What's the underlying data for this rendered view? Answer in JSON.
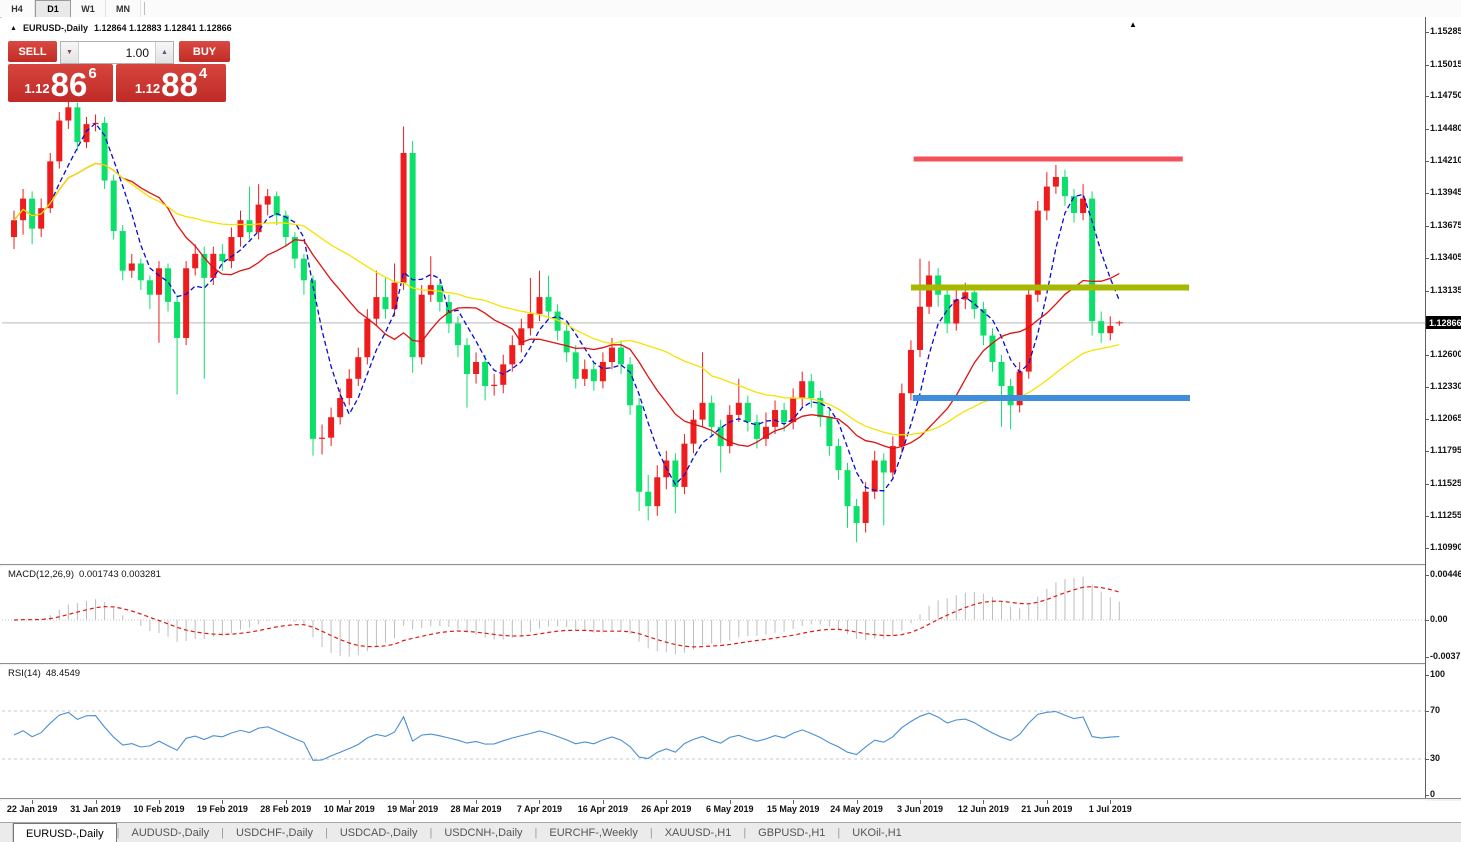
{
  "toolbar": {
    "timeframes": [
      {
        "label": "H4",
        "active": false
      },
      {
        "label": "D1",
        "active": true
      },
      {
        "label": "W1",
        "active": false
      },
      {
        "label": "MN",
        "active": false
      }
    ]
  },
  "chart": {
    "marker": "▲",
    "symbol_label": "EURUSD-,Daily",
    "ohlc_text": "1.12864 1.12883 1.12841 1.12866",
    "shift_marker": "▲",
    "trade_panel": {
      "sell_label": "SELL",
      "buy_label": "BUY",
      "volume": "1.00",
      "spin_down": "▼",
      "spin_up": "▲",
      "sell_price": {
        "small": "1.12",
        "big": "86",
        "sup": "6"
      },
      "buy_price": {
        "small": "1.12",
        "big": "88",
        "sup": "4"
      },
      "button_color": "#c9302b"
    }
  },
  "chart_data": {
    "type": "candlestick",
    "symbol": "EURUSD-",
    "timeframe": "Daily",
    "title": "EURUSD-,Daily",
    "up_color": "#ee1c1c",
    "down_color": "#0ce06a",
    "ylim": [
      1.109,
      1.15395
    ],
    "current_price": 1.12866,
    "current_price_text": "1.12866",
    "current_price_line_color": "#b9b9b9",
    "y_ticks": [
      "1.15285",
      "1.15015",
      "1.14750",
      "1.14480",
      "1.14210",
      "1.13945",
      "1.13675",
      "1.13405",
      "1.13135",
      "1.12600",
      "1.12330",
      "1.12065",
      "1.11795",
      "1.11525",
      "1.11255",
      "1.10990"
    ],
    "x_labels": [
      "22 Jan 2019",
      "31 Jan 2019",
      "10 Feb 2019",
      "19 Feb 2019",
      "28 Feb 2019",
      "10 Mar 2019",
      "19 Mar 2019",
      "28 Mar 2019",
      "7 Apr 2019",
      "16 Apr 2019",
      "26 Apr 2019",
      "6 May 2019",
      "15 May 2019",
      "24 May 2019",
      "3 Jun 2019",
      "12 Jun 2019",
      "21 Jun 2019",
      "1 Jul 2019"
    ],
    "x_label_indices": [
      2,
      9,
      16,
      23,
      30,
      37,
      44,
      51,
      58,
      65,
      72,
      79,
      86,
      93,
      100,
      107,
      114,
      121
    ],
    "moving_averages": [
      {
        "period": 5,
        "color": "#0a0ad2",
        "dash": "5,3"
      },
      {
        "period": 13,
        "color": "#dd1111",
        "dash": ""
      },
      {
        "period": 34,
        "color": "#f5e300",
        "dash": ""
      }
    ],
    "objects": [
      {
        "name": "resistance-line",
        "price": 1.1423,
        "i1": 99.3,
        "i2": 129.0,
        "color": "#f4515a",
        "width": 5
      },
      {
        "name": "mid-support-line",
        "price": 1.1316,
        "i1": 99.0,
        "i2": 129.7,
        "color": "#a6b800",
        "width": 6
      },
      {
        "name": "lower-support-line",
        "price": 1.1224,
        "i1": 99.2,
        "i2": 129.8,
        "color": "#3f8edc",
        "width": 6
      }
    ],
    "candles": [
      [
        1.1358,
        1.138,
        1.1348,
        1.1372
      ],
      [
        1.1372,
        1.1398,
        1.136,
        1.139
      ],
      [
        1.139,
        1.1396,
        1.1352,
        1.1365
      ],
      [
        1.1365,
        1.139,
        1.1358,
        1.1382
      ],
      [
        1.1382,
        1.1428,
        1.1378,
        1.1421
      ],
      [
        1.1421,
        1.1462,
        1.1415,
        1.1455
      ],
      [
        1.1455,
        1.1472,
        1.1448,
        1.1466
      ],
      [
        1.1466,
        1.147,
        1.143,
        1.1437
      ],
      [
        1.1437,
        1.1458,
        1.1432,
        1.1452
      ],
      [
        1.1452,
        1.146,
        1.1446,
        1.1453
      ],
      [
        1.1453,
        1.1458,
        1.1398,
        1.1405
      ],
      [
        1.1405,
        1.141,
        1.1356,
        1.1363
      ],
      [
        1.1363,
        1.1368,
        1.1322,
        1.133
      ],
      [
        1.133,
        1.1344,
        1.1324,
        1.1336
      ],
      [
        1.1336,
        1.134,
        1.1314,
        1.1322
      ],
      [
        1.1322,
        1.1326,
        1.1298,
        1.131
      ],
      [
        1.131,
        1.1338,
        1.127,
        1.1332
      ],
      [
        1.1332,
        1.1336,
        1.1296,
        1.1304
      ],
      [
        1.1304,
        1.131,
        1.1227,
        1.1274
      ],
      [
        1.1274,
        1.1338,
        1.1268,
        1.1332
      ],
      [
        1.1332,
        1.1352,
        1.1326,
        1.1344
      ],
      [
        1.1344,
        1.135,
        1.124,
        1.1324
      ],
      [
        1.1324,
        1.135,
        1.1318,
        1.1344
      ],
      [
        1.1344,
        1.1352,
        1.133,
        1.1338
      ],
      [
        1.1338,
        1.1366,
        1.1332,
        1.1358
      ],
      [
        1.1358,
        1.138,
        1.135,
        1.1372
      ],
      [
        1.1372,
        1.14,
        1.1356,
        1.1362
      ],
      [
        1.1362,
        1.1402,
        1.1356,
        1.1385
      ],
      [
        1.1385,
        1.1398,
        1.1376,
        1.1392
      ],
      [
        1.1392,
        1.1396,
        1.1368,
        1.1376
      ],
      [
        1.1376,
        1.138,
        1.135,
        1.1358
      ],
      [
        1.1358,
        1.1362,
        1.1332,
        1.134
      ],
      [
        1.134,
        1.1344,
        1.131,
        1.1322
      ],
      [
        1.1322,
        1.1326,
        1.1176,
        1.119
      ],
      [
        1.119,
        1.1202,
        1.1177,
        1.1191
      ],
      [
        1.1191,
        1.1216,
        1.1184,
        1.1208
      ],
      [
        1.1208,
        1.1232,
        1.1202,
        1.1224
      ],
      [
        1.1224,
        1.1248,
        1.1218,
        1.124
      ],
      [
        1.124,
        1.1266,
        1.1234,
        1.1258
      ],
      [
        1.1258,
        1.1298,
        1.1252,
        1.129
      ],
      [
        1.129,
        1.133,
        1.1284,
        1.1308
      ],
      [
        1.1308,
        1.1324,
        1.129,
        1.1298
      ],
      [
        1.1298,
        1.1336,
        1.1292,
        1.132
      ],
      [
        1.132,
        1.145,
        1.1314,
        1.1428
      ],
      [
        1.1428,
        1.1438,
        1.1245,
        1.1258
      ],
      [
        1.1258,
        1.1318,
        1.1252,
        1.131
      ],
      [
        1.131,
        1.1342,
        1.1304,
        1.1318
      ],
      [
        1.1318,
        1.1322,
        1.1296,
        1.1304
      ],
      [
        1.1304,
        1.131,
        1.1278,
        1.1286
      ],
      [
        1.1286,
        1.1292,
        1.1258,
        1.1268
      ],
      [
        1.1268,
        1.1274,
        1.1216,
        1.1244
      ],
      [
        1.1244,
        1.1262,
        1.1236,
        1.1254
      ],
      [
        1.1254,
        1.126,
        1.1222,
        1.1234
      ],
      [
        1.1234,
        1.1244,
        1.1226,
        1.1235
      ],
      [
        1.1235,
        1.126,
        1.1228,
        1.1252
      ],
      [
        1.1252,
        1.1276,
        1.1246,
        1.1268
      ],
      [
        1.1268,
        1.129,
        1.1262,
        1.1282
      ],
      [
        1.1282,
        1.1324,
        1.1276,
        1.1294
      ],
      [
        1.1294,
        1.133,
        1.1288,
        1.1308
      ],
      [
        1.1308,
        1.1326,
        1.129,
        1.1296
      ],
      [
        1.1296,
        1.1302,
        1.1272,
        1.128
      ],
      [
        1.128,
        1.1286,
        1.1254,
        1.1262
      ],
      [
        1.1262,
        1.1268,
        1.1232,
        1.124
      ],
      [
        1.124,
        1.1256,
        1.1234,
        1.1248
      ],
      [
        1.1248,
        1.1254,
        1.123,
        1.1238
      ],
      [
        1.1238,
        1.1262,
        1.1232,
        1.1254
      ],
      [
        1.1254,
        1.1274,
        1.1248,
        1.1266
      ],
      [
        1.1266,
        1.1272,
        1.1244,
        1.1252
      ],
      [
        1.1252,
        1.1258,
        1.121,
        1.1218
      ],
      [
        1.1218,
        1.1224,
        1.113,
        1.1146
      ],
      [
        1.1146,
        1.116,
        1.1122,
        1.1134
      ],
      [
        1.1134,
        1.1168,
        1.1126,
        1.1158
      ],
      [
        1.1158,
        1.118,
        1.1148,
        1.1172
      ],
      [
        1.1172,
        1.1178,
        1.1128,
        1.115
      ],
      [
        1.115,
        1.1194,
        1.1144,
        1.1186
      ],
      [
        1.1186,
        1.1214,
        1.1178,
        1.1206
      ],
      [
        1.1206,
        1.1262,
        1.12,
        1.122
      ],
      [
        1.122,
        1.1226,
        1.1192,
        1.12
      ],
      [
        1.12,
        1.1206,
        1.1162,
        1.1184
      ],
      [
        1.1184,
        1.1218,
        1.1178,
        1.121
      ],
      [
        1.121,
        1.124,
        1.1204,
        1.122
      ],
      [
        1.122,
        1.1226,
        1.1196,
        1.1204
      ],
      [
        1.1204,
        1.121,
        1.1182,
        1.119
      ],
      [
        1.119,
        1.1212,
        1.1184,
        1.12
      ],
      [
        1.12,
        1.1222,
        1.1194,
        1.1214
      ],
      [
        1.1214,
        1.122,
        1.1196,
        1.1204
      ],
      [
        1.1204,
        1.1232,
        1.1198,
        1.1224
      ],
      [
        1.1224,
        1.1246,
        1.1216,
        1.1238
      ],
      [
        1.1238,
        1.1244,
        1.1216,
        1.1224
      ],
      [
        1.1224,
        1.123,
        1.12,
        1.1208
      ],
      [
        1.1208,
        1.1214,
        1.1176,
        1.1184
      ],
      [
        1.1184,
        1.119,
        1.1156,
        1.1164
      ],
      [
        1.1164,
        1.117,
        1.1116,
        1.1134
      ],
      [
        1.1134,
        1.114,
        1.1104,
        1.112
      ],
      [
        1.112,
        1.1154,
        1.1112,
        1.1146
      ],
      [
        1.1146,
        1.118,
        1.114,
        1.1172
      ],
      [
        1.1172,
        1.1178,
        1.1118,
        1.1162
      ],
      [
        1.1162,
        1.1192,
        1.1156,
        1.1184
      ],
      [
        1.1184,
        1.1236,
        1.1178,
        1.1228
      ],
      [
        1.1228,
        1.1272,
        1.1222,
        1.1264
      ],
      [
        1.1264,
        1.134,
        1.1258,
        1.13
      ],
      [
        1.13,
        1.1338,
        1.1294,
        1.1326
      ],
      [
        1.1326,
        1.1332,
        1.13,
        1.131
      ],
      [
        1.131,
        1.1316,
        1.1278,
        1.1286
      ],
      [
        1.1286,
        1.1314,
        1.128,
        1.1306
      ],
      [
        1.1306,
        1.132,
        1.1298,
        1.1312
      ],
      [
        1.1312,
        1.1318,
        1.129,
        1.1298
      ],
      [
        1.1298,
        1.1304,
        1.1268,
        1.1276
      ],
      [
        1.1276,
        1.1282,
        1.1246,
        1.1254
      ],
      [
        1.1254,
        1.126,
        1.12,
        1.1234
      ],
      [
        1.1234,
        1.124,
        1.1198,
        1.1218
      ],
      [
        1.1218,
        1.1254,
        1.1212,
        1.1246
      ],
      [
        1.1246,
        1.1318,
        1.124,
        1.131
      ],
      [
        1.131,
        1.1388,
        1.1304,
        1.138
      ],
      [
        1.138,
        1.1412,
        1.1372,
        1.14
      ],
      [
        1.14,
        1.1418,
        1.1394,
        1.1408
      ],
      [
        1.1408,
        1.1414,
        1.1384,
        1.1392
      ],
      [
        1.1392,
        1.1398,
        1.137,
        1.1378
      ],
      [
        1.1378,
        1.1402,
        1.1372,
        1.139
      ],
      [
        1.139,
        1.1396,
        1.1276,
        1.1288
      ],
      [
        1.1288,
        1.1296,
        1.127,
        1.1278
      ],
      [
        1.1278,
        1.1292,
        1.1272,
        1.1284
      ],
      [
        1.12864,
        1.12883,
        1.12841,
        1.12866
      ]
    ],
    "indicators": {
      "macd": {
        "label": "MACD(12,26,9)",
        "values_text": "0.001743 0.003281",
        "fast": 12,
        "slow": 26,
        "signal": 9,
        "ylim": [
          -0.003715,
          0.004465
        ],
        "axis_labels": [
          "0.004465",
          "0.00",
          "-0.003715"
        ],
        "hist_color": "#bdbdbd",
        "signal_color": "#e01818",
        "zero_line_color": "#c0c0c0"
      },
      "rsi": {
        "label": "RSI(14)",
        "value_text": "48.4549",
        "period": 14,
        "levels": [
          70,
          30
        ],
        "axis_labels": [
          "100",
          "70",
          "30",
          "0"
        ],
        "line_color": "#4a8fd4",
        "level_color": "#c8c8c8"
      }
    }
  },
  "bottom_tabs": [
    {
      "label": "EURUSD-,Daily",
      "active": true
    },
    {
      "label": "AUDUSD-,Daily",
      "active": false
    },
    {
      "label": "USDCHF-,Daily",
      "active": false
    },
    {
      "label": "USDCAD-,Daily",
      "active": false
    },
    {
      "label": "USDCNH-,Daily",
      "active": false
    },
    {
      "label": "EURCHF-,Weekly",
      "active": false
    },
    {
      "label": "XAUUSD-,H1",
      "active": false
    },
    {
      "label": "GBPUSD-,H1",
      "active": false
    },
    {
      "label": "UKOil-,H1",
      "active": false
    }
  ]
}
